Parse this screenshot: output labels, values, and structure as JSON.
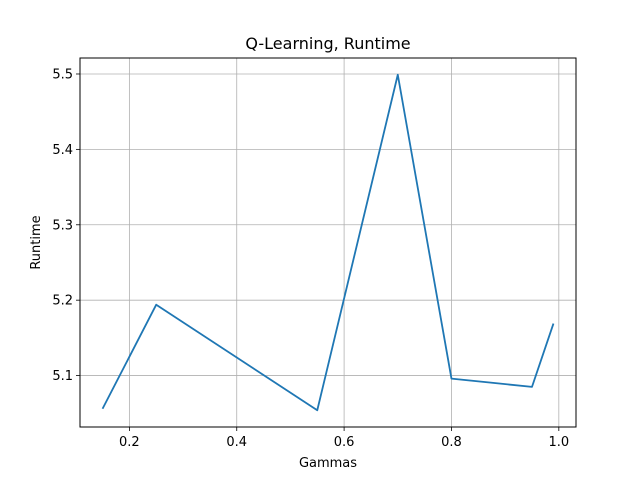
{
  "chart_data": {
    "type": "line",
    "title": "Q-Learning, Runtime",
    "xlabel": "Gammas",
    "ylabel": "Runtime",
    "x": [
      0.15,
      0.25,
      0.55,
      0.7,
      0.8,
      0.95,
      0.99
    ],
    "series": [
      {
        "values": [
          5.056,
          5.194,
          5.054,
          5.499,
          5.096,
          5.085,
          5.169
        ],
        "color": "#1f77b4"
      }
    ],
    "xlim": [
      0.108,
      1.032
    ],
    "ylim": [
      5.0318,
      5.5212
    ],
    "xticks": [
      0.2,
      0.4,
      0.6,
      0.8,
      1.0
    ],
    "xtick_labels": [
      "0.2",
      "0.4",
      "0.6",
      "0.8",
      "1.0"
    ],
    "yticks": [
      5.1,
      5.2,
      5.3,
      5.4,
      5.5
    ],
    "ytick_labels": [
      "5.1",
      "5.2",
      "5.3",
      "5.4",
      "5.5"
    ],
    "grid": true,
    "legend": "none"
  }
}
